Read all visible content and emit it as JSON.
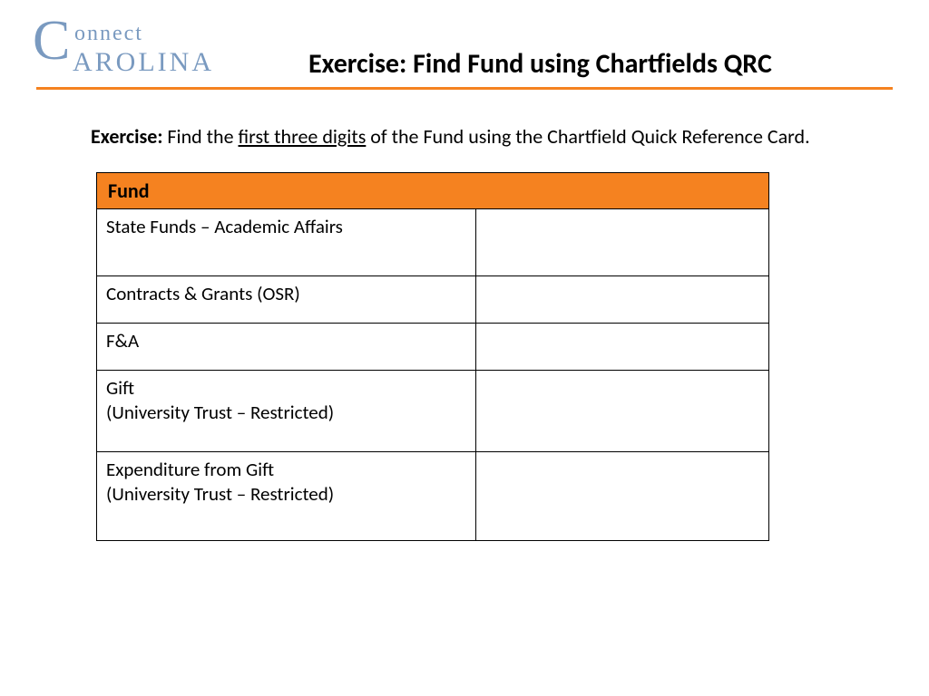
{
  "logo": {
    "big_c": "C",
    "line1": "onnect",
    "line2": "AROLINA",
    "color": "#7a9ac0"
  },
  "header": {
    "title": "Exercise: Find Fund using Chartfields QRC",
    "divider_color": "#f58220"
  },
  "instruction": {
    "bold_lead": "Exercise:",
    "part1": " Find the ",
    "underlined": "first three digits",
    "part2": " of the Fund using the Chartfield Quick Reference Card."
  },
  "table": {
    "header_label": "Fund",
    "header_bg": "#f58220",
    "border_color": "#000000",
    "rows": [
      {
        "label": "State Funds – Academic Affairs",
        "answer": ""
      },
      {
        "label": "Contracts & Grants (OSR)",
        "answer": ""
      },
      {
        "label": "F&A",
        "answer": ""
      },
      {
        "label": "Gift\n(University Trust – Restricted)",
        "answer": ""
      },
      {
        "label": "Expenditure from Gift\n(University Trust – Restricted)",
        "answer": ""
      }
    ]
  }
}
